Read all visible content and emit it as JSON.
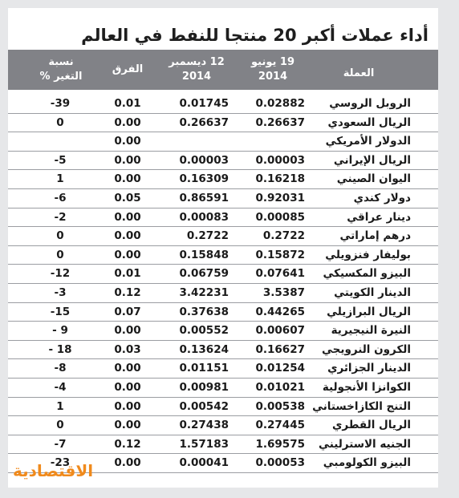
{
  "title": "أداء عملات أكبر 20 منتجا للنفط في العالم",
  "logo": "الاقتصادية",
  "chart_data": {
    "type": "table",
    "columns": [
      "العملة",
      "19 يونيو 2014",
      "12 ديسمبر 2014",
      "الفرق",
      "نسبة التغير %"
    ],
    "header": {
      "currency": "العملة",
      "jun_line1": "19 يونيو",
      "jun_line2": "2014",
      "dec_line1": "12 ديسمبر",
      "dec_line2": "2014",
      "diff": "الفرق",
      "pct_line1": "نسبة",
      "pct_line2": "التغير %"
    },
    "rows": [
      {
        "currency": "الروبل الروسي",
        "jun": "0.02882",
        "dec": "0.01745",
        "diff": "0.01",
        "pct": "-39"
      },
      {
        "currency": "الريال السعودي",
        "jun": "0.26637",
        "dec": "0.26637",
        "diff": "0.00",
        "pct": "0"
      },
      {
        "currency": "الدولار الأمريكي",
        "jun": "",
        "dec": "",
        "diff": "0.00",
        "pct": ""
      },
      {
        "currency": "الريال الإيراني",
        "jun": "0.00003",
        "dec": "0.00003",
        "diff": "0.00",
        "pct": "-5"
      },
      {
        "currency": "اليوان الصيني",
        "jun": "0.16218",
        "dec": "0.16309",
        "diff": "0.00",
        "pct": "1"
      },
      {
        "currency": "دولار كندي",
        "jun": "0.92031",
        "dec": "0.86591",
        "diff": "0.05",
        "pct": "-6"
      },
      {
        "currency": "دينار عراقي",
        "jun": "0.00085",
        "dec": "0.00083",
        "diff": "0.00",
        "pct": "-2"
      },
      {
        "currency": "درهم إماراتي",
        "jun": "0.2722",
        "dec": "0.2722",
        "diff": "0.00",
        "pct": "0"
      },
      {
        "currency": "بوليفار فنزويلي",
        "jun": "0.15872",
        "dec": "0.15848",
        "diff": "0.00",
        "pct": "0"
      },
      {
        "currency": "البيزو المكسيكي",
        "jun": "0.07641",
        "dec": "0.06759",
        "diff": "0.01",
        "pct": "-12"
      },
      {
        "currency": "الدينار الكويتي",
        "jun": "3.5387",
        "dec": "3.42231",
        "diff": "0.12",
        "pct": "-3"
      },
      {
        "currency": "الريال البرازيلي",
        "jun": "0.44265",
        "dec": "0.37638",
        "diff": "0.07",
        "pct": "-15"
      },
      {
        "currency": "النيرة النيجيرية",
        "jun": "0.00607",
        "dec": "0.00552",
        "diff": "0.00",
        "pct": "- 9"
      },
      {
        "currency": "الكرون النرويجي",
        "jun": "0.16627",
        "dec": "0.13624",
        "diff": "0.03",
        "pct": "- 18"
      },
      {
        "currency": "الدينار الجزائري",
        "jun": "0.01254",
        "dec": "0.01151",
        "diff": "0.00",
        "pct": "-8"
      },
      {
        "currency": "الكوانزا الأنجولية",
        "jun": "0.01021",
        "dec": "0.00981",
        "diff": "0.00",
        "pct": "-4"
      },
      {
        "currency": "التنج الكازاخستاني",
        "jun": "0.00538",
        "dec": "0.00542",
        "diff": "0.00",
        "pct": "1"
      },
      {
        "currency": "الريال القطري",
        "jun": "0.27445",
        "dec": "0.27438",
        "diff": "0.00",
        "pct": "0"
      },
      {
        "currency": "الجنيه الاسترليني",
        "jun": "1.69575",
        "dec": "1.57183",
        "diff": "0.12",
        "pct": "-7"
      },
      {
        "currency": "البيزو الكولومبي",
        "jun": "0.00053",
        "dec": "0.00041",
        "diff": "0.00",
        "pct": "-23"
      }
    ]
  }
}
